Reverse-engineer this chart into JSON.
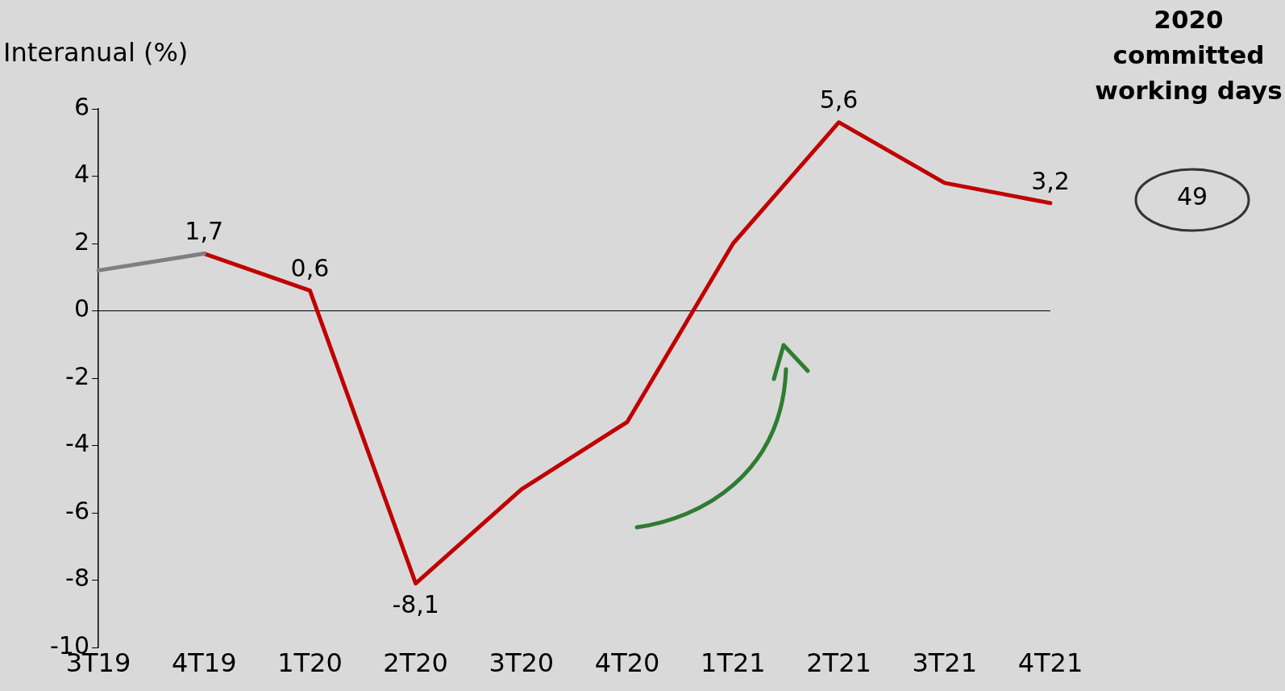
{
  "chart_data": {
    "type": "line",
    "ylabel": "Interanual (%)",
    "categories": [
      "3T19",
      "4T19",
      "1T20",
      "2T20",
      "3T20",
      "4T20",
      "1T21",
      "2T21",
      "3T21",
      "4T21"
    ],
    "series": [
      {
        "color": "#7f7f7f",
        "values": [
          1.2,
          1.7,
          null,
          null,
          null,
          null,
          null,
          null,
          null,
          null
        ]
      },
      {
        "color": "#c00000",
        "values": [
          null,
          1.7,
          0.6,
          -8.1,
          -5.3,
          -3.3,
          2.0,
          5.6,
          3.8,
          3.2
        ],
        "value_labels": [
          null,
          "1,7",
          "0,6",
          "-8,1",
          null,
          null,
          null,
          "5,6",
          null,
          "3,2"
        ]
      }
    ],
    "ylim": [
      -10,
      6
    ],
    "yticks": [
      -10,
      -8,
      -6,
      -4,
      -2,
      0,
      2,
      4,
      6
    ],
    "grid": false,
    "legend": false,
    "marker": "none",
    "line_style": "solid",
    "ref_lines": [
      {
        "axis": "y",
        "value": 0,
        "color": "#000000"
      }
    ],
    "annotations": [
      "2020 committed working days",
      "49"
    ]
  }
}
